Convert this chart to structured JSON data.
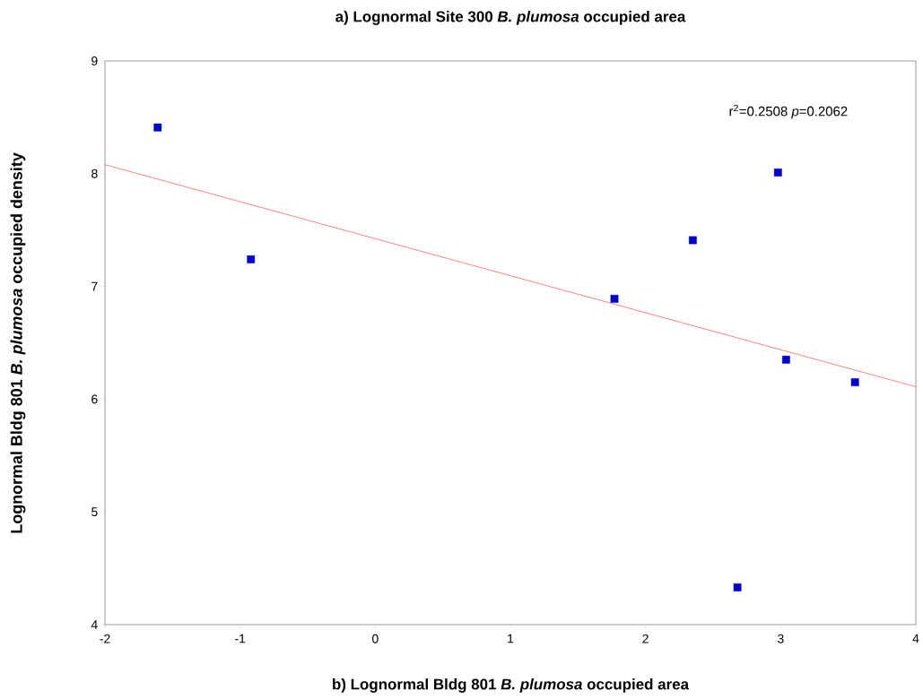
{
  "chart_data": {
    "type": "scatter",
    "title": "a) Lognormal Site 300 *B. plumosa* occupied area",
    "xlabel": "b) Lognormal Bldg 801 *B. plumosa* occupied area",
    "ylabel": "Lognormal Bldg 801 *B. plumosa* occupied density",
    "annotations": [
      "r$^{2}$=0.2508 *p*=0.2062"
    ],
    "x": [
      -1.61,
      -0.92,
      1.77,
      2.35,
      2.98,
      3.04,
      3.55,
      2.68
    ],
    "series": [
      {
        "color": "#0000cc",
        "values": [
          8.41,
          7.24,
          6.89,
          7.41,
          8.01,
          6.35,
          6.15,
          4.33
        ]
      },
      {
        "type": "line",
        "color": "#ff0000",
        "marker": "none",
        "x": [
          -2,
          4
        ],
        "values": [
          8.08,
          6.11
        ]
      }
    ],
    "xlim": [
      -2,
      4
    ],
    "ylim": [
      4,
      9
    ],
    "xticks": [
      -2,
      -1,
      0,
      1,
      2,
      3,
      4
    ],
    "yticks": [
      4,
      5,
      6,
      7,
      8,
      9
    ],
    "grid": false,
    "marker": "square"
  }
}
